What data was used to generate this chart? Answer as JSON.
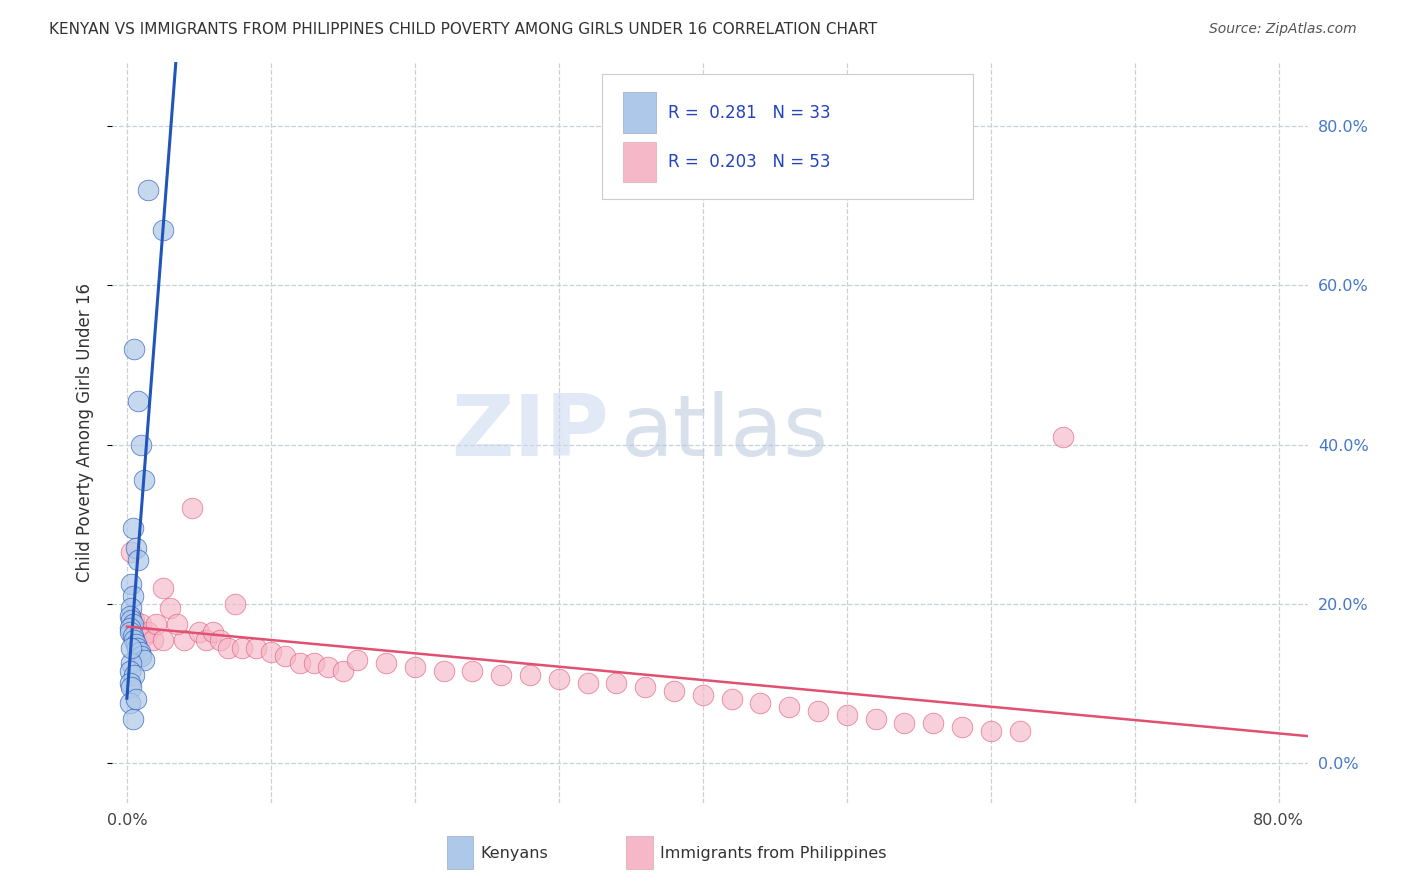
{
  "title": "KENYAN VS IMMIGRANTS FROM PHILIPPINES CHILD POVERTY AMONG GIRLS UNDER 16 CORRELATION CHART",
  "source": "Source: ZipAtlas.com",
  "ylabel": "Child Poverty Among Girls Under 16",
  "xlim": [
    -0.01,
    0.82
  ],
  "ylim": [
    -0.05,
    0.88
  ],
  "x_ticks": [
    0.0,
    0.8
  ],
  "x_tick_labels": [
    "0.0%",
    "80.0%"
  ],
  "y_ticks": [
    0.0,
    0.2,
    0.4,
    0.6,
    0.8
  ],
  "y_tick_labels_right": [
    "0.0%",
    "20.0%",
    "40.0%",
    "60.0%",
    "80.0%"
  ],
  "color_kenyan": "#adc8e8",
  "color_philippines": "#f5b8c8",
  "color_kenyan_line": "#2255bb",
  "color_philippines_line": "#e05070",
  "color_kenyan_dash": "#99bbdd",
  "watermark_zip": "ZIP",
  "watermark_atlas": "atlas",
  "kenyan_x": [
    0.015,
    0.025,
    0.005,
    0.008,
    0.01,
    0.012,
    0.004,
    0.006,
    0.008,
    0.003,
    0.004,
    0.003,
    0.002,
    0.003,
    0.004,
    0.002,
    0.002,
    0.004,
    0.005,
    0.006,
    0.007,
    0.009,
    0.01,
    0.012,
    0.003,
    0.002,
    0.005,
    0.002,
    0.003,
    0.002,
    0.004,
    0.003,
    0.006
  ],
  "kenyan_y": [
    0.72,
    0.67,
    0.52,
    0.455,
    0.4,
    0.355,
    0.295,
    0.27,
    0.255,
    0.225,
    0.21,
    0.195,
    0.185,
    0.18,
    0.175,
    0.17,
    0.165,
    0.16,
    0.155,
    0.15,
    0.145,
    0.14,
    0.135,
    0.13,
    0.125,
    0.115,
    0.11,
    0.1,
    0.095,
    0.075,
    0.055,
    0.145,
    0.08
  ],
  "phil_x": [
    0.003,
    0.005,
    0.008,
    0.01,
    0.012,
    0.015,
    0.018,
    0.02,
    0.025,
    0.03,
    0.04,
    0.05,
    0.055,
    0.06,
    0.065,
    0.07,
    0.08,
    0.09,
    0.1,
    0.11,
    0.12,
    0.13,
    0.14,
    0.15,
    0.16,
    0.18,
    0.2,
    0.22,
    0.24,
    0.26,
    0.28,
    0.3,
    0.32,
    0.34,
    0.36,
    0.38,
    0.4,
    0.42,
    0.44,
    0.46,
    0.48,
    0.5,
    0.52,
    0.54,
    0.56,
    0.58,
    0.6,
    0.62,
    0.65,
    0.045,
    0.075,
    0.025,
    0.035
  ],
  "phil_y": [
    0.265,
    0.18,
    0.165,
    0.175,
    0.16,
    0.165,
    0.155,
    0.175,
    0.155,
    0.195,
    0.155,
    0.165,
    0.155,
    0.165,
    0.155,
    0.145,
    0.145,
    0.145,
    0.14,
    0.135,
    0.125,
    0.125,
    0.12,
    0.115,
    0.13,
    0.125,
    0.12,
    0.115,
    0.115,
    0.11,
    0.11,
    0.105,
    0.1,
    0.1,
    0.095,
    0.09,
    0.085,
    0.08,
    0.075,
    0.07,
    0.065,
    0.06,
    0.055,
    0.05,
    0.05,
    0.045,
    0.04,
    0.04,
    0.41,
    0.32,
    0.2,
    0.22,
    0.175
  ]
}
